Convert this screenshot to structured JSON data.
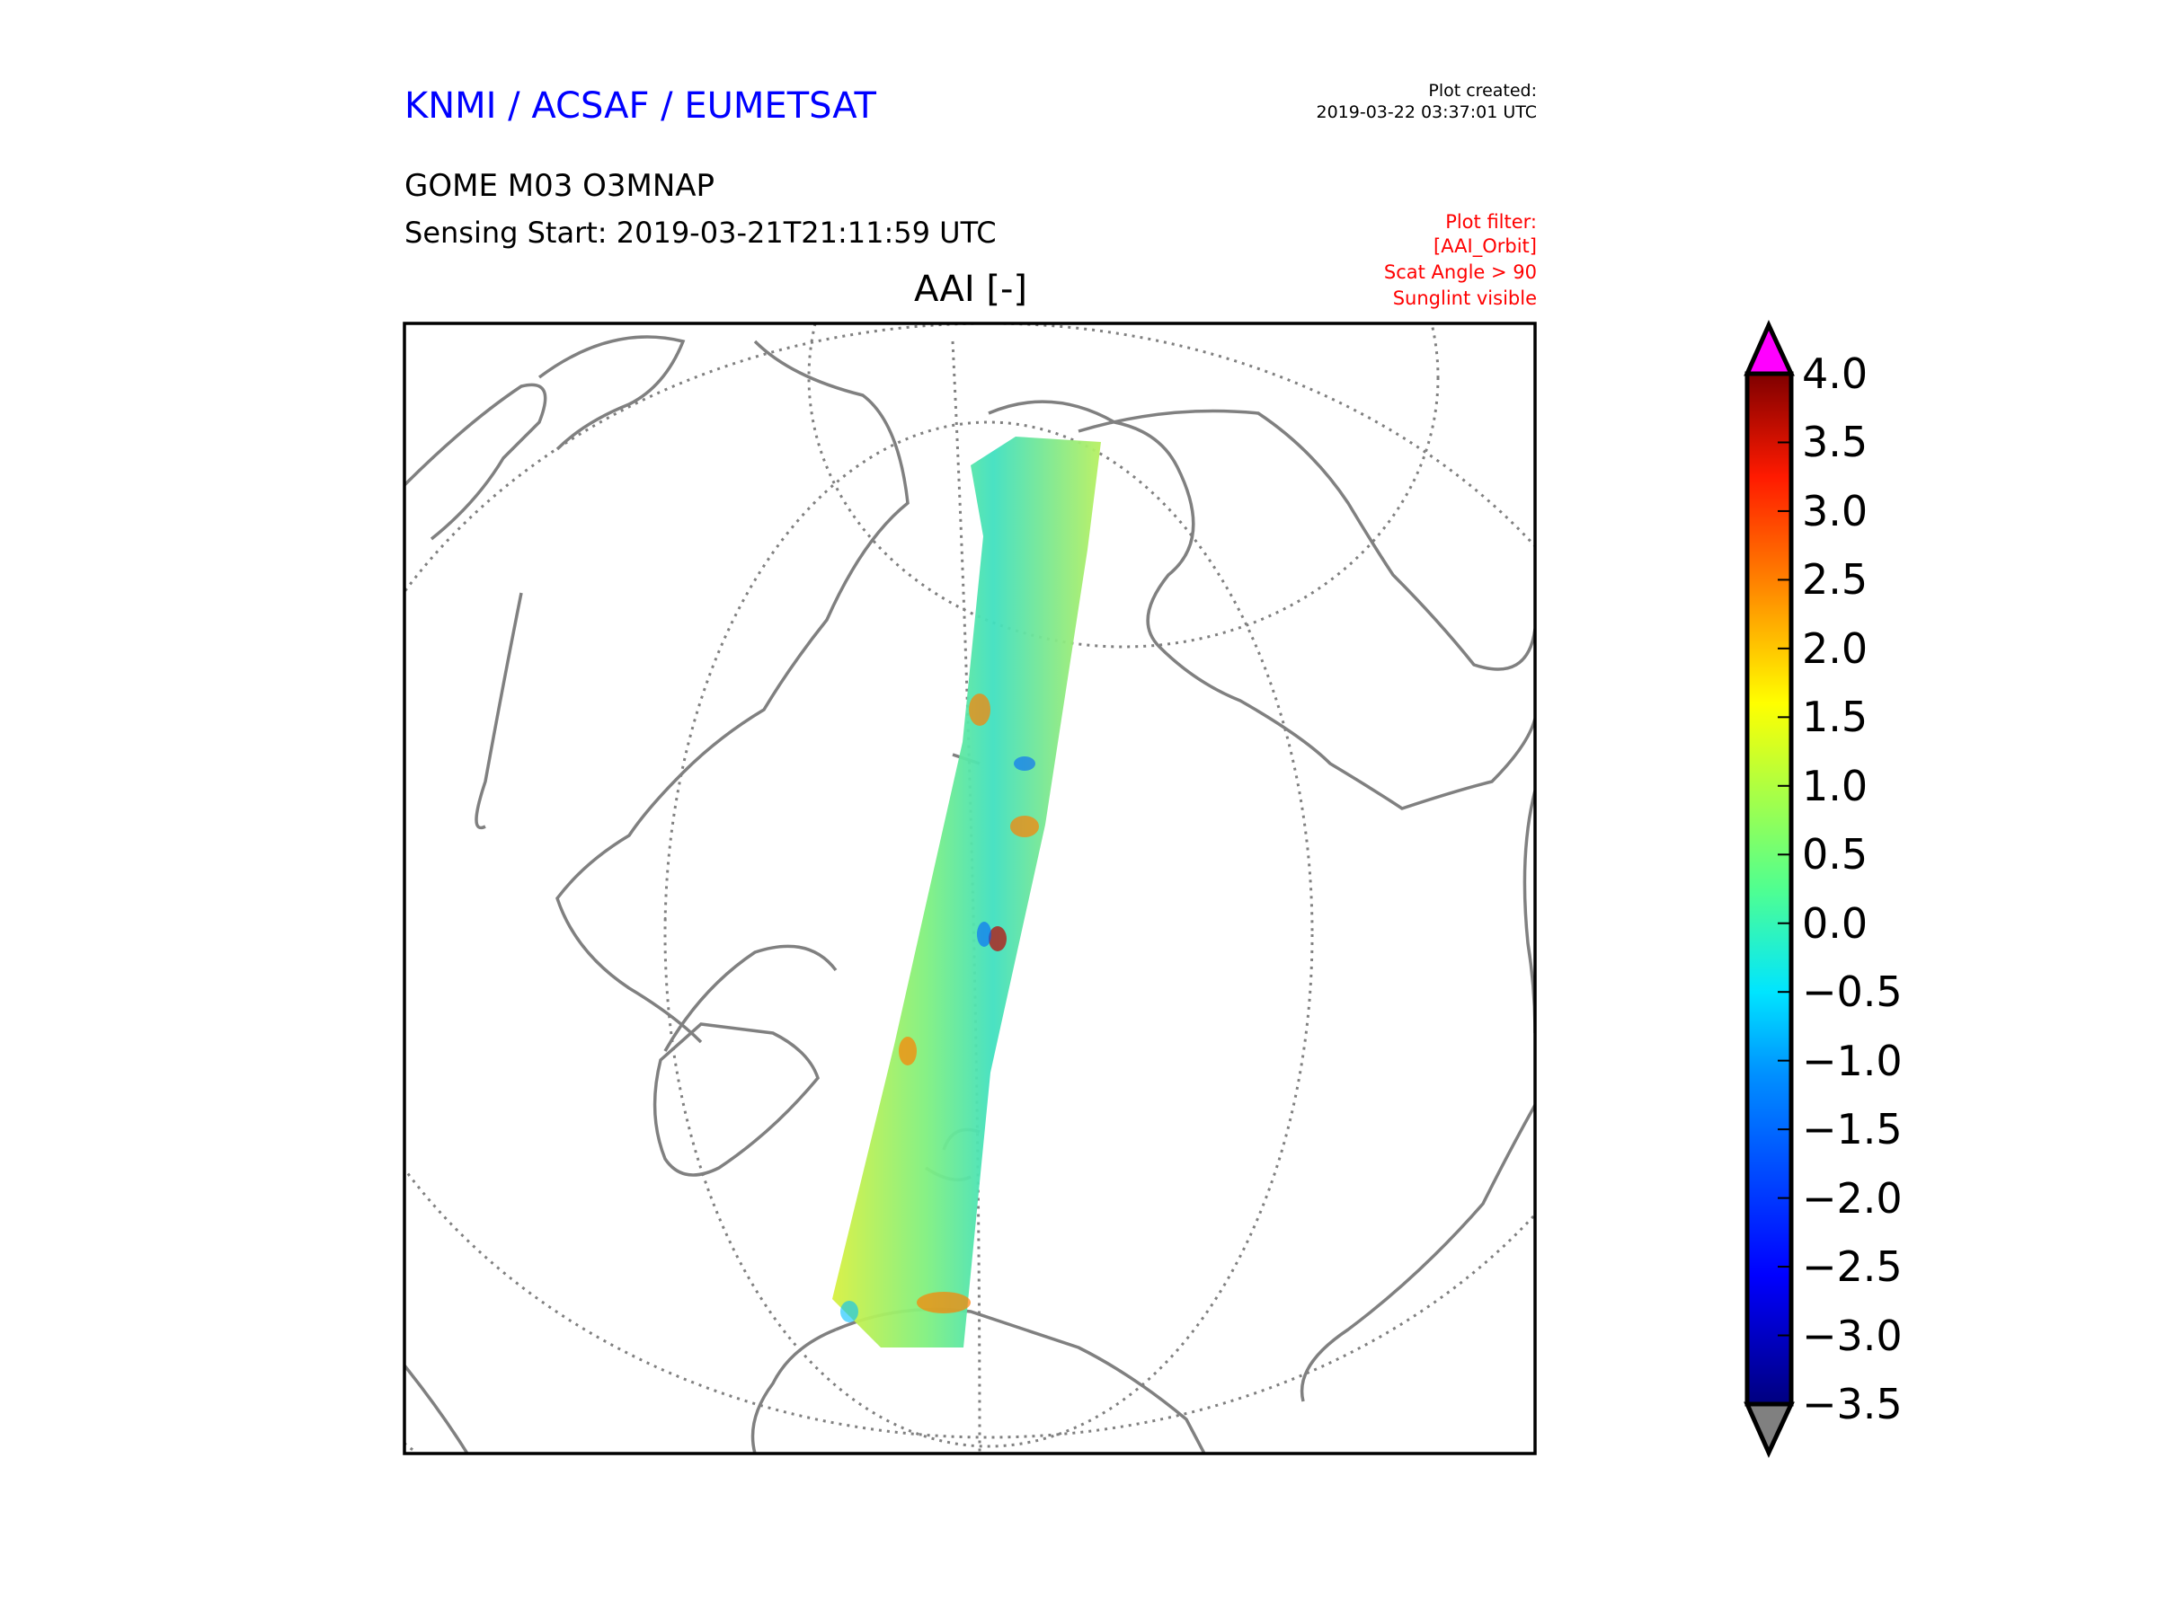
{
  "header": {
    "organization": "KNMI / ACSAF / EUMETSAT",
    "created_label": "Plot created:",
    "created_value": "2019-03-22 03:37:01 UTC",
    "product": "GOME M03 O3MNAP",
    "sensing_start": "Sensing Start: 2019-03-21T21:11:59 UTC",
    "filter_lines": [
      "Plot filter:",
      "[AAI_Orbit]",
      "Scat Angle > 90",
      "Sunglint visible"
    ]
  },
  "colors": {
    "org": "#0000ff",
    "filter": "#ff0000",
    "coast": "#808080",
    "over": "#ff00ff",
    "under": "#808080"
  },
  "chart_data": {
    "type": "heatmap",
    "title": "AAI [-]",
    "projection": "polar-orthographic map with single-orbit satellite swath",
    "colorbar": {
      "min": -3.5,
      "max": 4.0,
      "ticks": [
        "4.0",
        "3.5",
        "3.0",
        "2.5",
        "2.0",
        "1.5",
        "1.0",
        "0.5",
        "0.0",
        "−0.5",
        "−1.0",
        "−1.5",
        "−2.0",
        "−2.5",
        "−3.0",
        "−3.5"
      ],
      "tick_values": [
        4.0,
        3.5,
        3.0,
        2.5,
        2.0,
        1.5,
        1.0,
        0.5,
        0.0,
        -0.5,
        -1.0,
        -1.5,
        -2.0,
        -2.5,
        -3.0,
        -3.5
      ],
      "colormap": "jet",
      "extend": "both"
    },
    "swath_typical_range": [
      -1.0,
      2.0
    ]
  }
}
